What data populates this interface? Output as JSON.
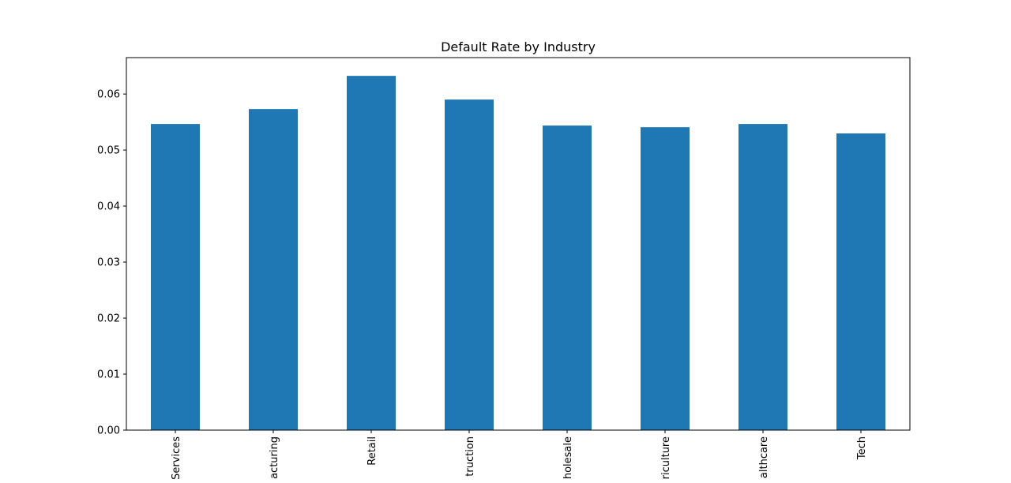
{
  "chart_data": {
    "type": "bar",
    "title": "Default Rate by Industry",
    "categories": [
      "Services",
      "acturing",
      "Retail",
      "truction",
      "holesale",
      "riculture",
      "althcare",
      "Tech"
    ],
    "values": [
      0.05465,
      0.05732,
      0.06324,
      0.05901,
      0.05437,
      0.05408,
      0.05465,
      0.05296
    ],
    "color": "#1f77b4",
    "ylim": [
      0,
      0.0665
    ],
    "yticks": [
      {
        "value": 0,
        "label": "0.00"
      },
      0.01,
      0.02,
      0.03,
      0.04,
      0.05,
      0.06
    ],
    "grid": false
  }
}
